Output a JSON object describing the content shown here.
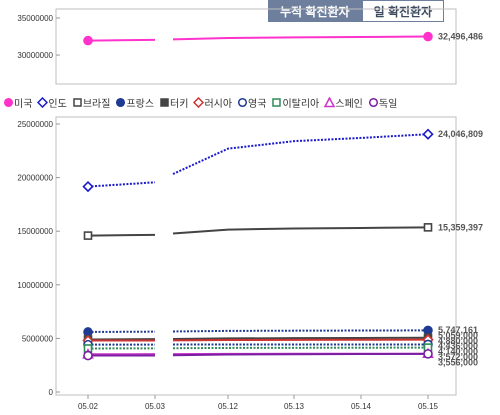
{
  "tabs": [
    {
      "label": "누적 확진환자",
      "active": true
    },
    {
      "label": "일 확진환자",
      "active": false
    }
  ],
  "chart_data": {
    "type": "line",
    "categories": [
      "05.02",
      "05.03",
      "05.12",
      "05.13",
      "05.14",
      "05.15"
    ],
    "top_panel": {
      "ylim": [
        0,
        35000000
      ],
      "y_ticks": [
        "35000000",
        "30000000"
      ],
      "series": [
        {
          "name": "미국",
          "color": "#ff33cc",
          "marker": "circle",
          "filled": true,
          "style": "solid",
          "values": [
            31950000,
            32050000,
            32300000,
            32380000,
            32440000,
            32496486
          ],
          "end_label": "32,496,486"
        }
      ]
    },
    "bottom_panel": {
      "ylim": [
        0,
        25000000
      ],
      "y_ticks": [
        "25000000",
        "20000000",
        "15000000",
        "10000000",
        "5000000",
        "0"
      ],
      "series": [
        {
          "name": "인도",
          "color": "#1a1acc",
          "marker": "diamond",
          "filled": false,
          "style": "dotted",
          "values": [
            19160000,
            19560000,
            22700000,
            23400000,
            23700000,
            24046809
          ],
          "end_label": "24,046,809"
        },
        {
          "name": "브라질",
          "color": "#444444",
          "marker": "square",
          "filled": false,
          "style": "solid",
          "values": [
            14590000,
            14660000,
            15150000,
            15250000,
            15300000,
            15359397
          ],
          "end_label": "15,359,397"
        },
        {
          "name": "프랑스",
          "color": "#1f3a93",
          "marker": "circle",
          "filled": true,
          "style": "dotted",
          "values": [
            5600000,
            5630000,
            5700000,
            5720000,
            5735000,
            5747161
          ],
          "end_label": "5,747,161"
        },
        {
          "name": "터키",
          "color": "#444444",
          "marker": "square",
          "filled": true,
          "style": "solid",
          "values": [
            4900000,
            4930000,
            5000000,
            5020000,
            5040000,
            5059000
          ],
          "end_label": "5,059,000"
        },
        {
          "name": "러시아",
          "color": "#cc3333",
          "marker": "diamond",
          "filled": false,
          "style": "solid",
          "values": [
            4800000,
            4805000,
            4850000,
            4860000,
            4870000,
            4880000
          ],
          "end_label": "4,880,000"
        },
        {
          "name": "영국",
          "color": "#1f3a93",
          "marker": "circle",
          "filled": false,
          "style": "dotted",
          "values": [
            4420000,
            4425000,
            4430000,
            4432000,
            4434000,
            4436000
          ],
          "end_label": "4,436,000"
        },
        {
          "name": "이탈리아",
          "color": "#2e8b57",
          "marker": "square",
          "filled": false,
          "style": "dotted",
          "values": [
            4060000,
            4075000,
            4110000,
            4120000,
            4130000,
            4140000
          ],
          "end_label": "4,140,000"
        },
        {
          "name": "스페인",
          "color": "#cc33cc",
          "marker": "triangle",
          "filled": false,
          "style": "solid",
          "values": [
            3520000,
            3530000,
            3560000,
            3565000,
            3568000,
            3572000
          ],
          "end_label": "3,572,000"
        },
        {
          "name": "독일",
          "color": "#7a1fa2",
          "marker": "circle",
          "filled": false,
          "style": "solid",
          "values": [
            3400000,
            3410000,
            3500000,
            3520000,
            3540000,
            3556000
          ],
          "end_label": "3,556,000"
        }
      ]
    }
  }
}
